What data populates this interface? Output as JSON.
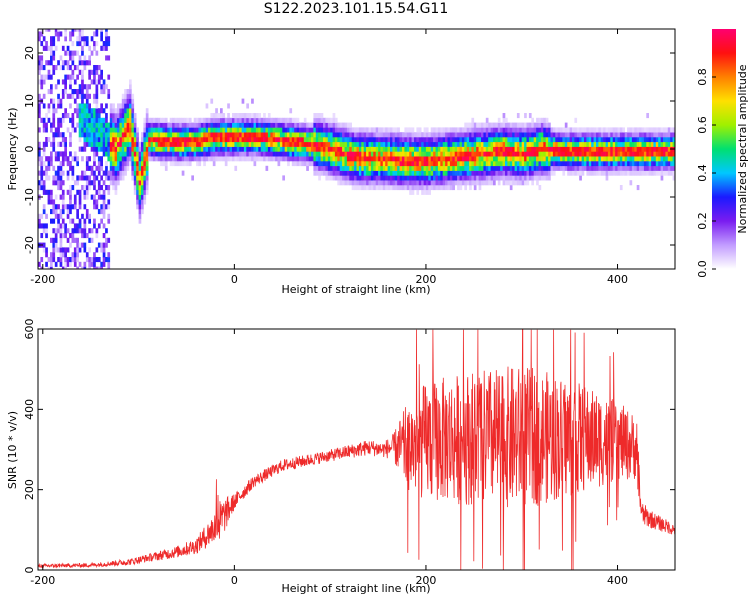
{
  "chart_data": [
    {
      "type": "heatmap",
      "title": "S122.2023.101.15.54.G11",
      "xlabel": "Height of straight line (km)",
      "ylabel": "Frequency (Hz)",
      "xlim": [
        -205,
        460
      ],
      "ylim": [
        -25,
        25
      ],
      "xticks": [
        -200,
        0,
        200,
        400
      ],
      "yticks": [
        -20,
        -10,
        0,
        10,
        20
      ],
      "colorbar": {
        "label": "Normalized spectral amplitude",
        "range": [
          0,
          1
        ],
        "ticks": [
          0.0,
          0.2,
          0.4,
          0.6,
          0.8
        ],
        "colors": [
          "#ffffff",
          "#c29cff",
          "#7a1cf0",
          "#1a1aff",
          "#00c8ff",
          "#00e070",
          "#a0f000",
          "#ffe000",
          "#ff8000",
          "#ff1010",
          "#ff0070"
        ]
      },
      "ridge": {
        "x": [
          -160,
          -140,
          -125,
          -110,
          -100,
          -90,
          -70,
          -40,
          -20,
          0,
          20,
          40,
          60,
          80,
          100,
          120,
          140,
          160,
          180,
          200,
          220,
          240,
          260,
          280,
          300,
          320,
          350,
          400,
          460
        ],
        "y": [
          6,
          3,
          0,
          5,
          -7,
          2,
          1.5,
          1.5,
          2.5,
          2.5,
          2.5,
          2,
          1.5,
          1,
          0,
          -1.5,
          -2,
          -2,
          -2.5,
          -2.5,
          -2,
          -1.5,
          -1,
          -0.5,
          -1,
          0,
          -0.5,
          -0.5,
          -0.5
        ]
      }
    },
    {
      "type": "line",
      "xlabel": "Height of straight line (km)",
      "ylabel": "SNR (10 * v/v)",
      "xlim": [
        -205,
        460
      ],
      "ylim": [
        0,
        600
      ],
      "xticks": [
        -200,
        0,
        200,
        400
      ],
      "yticks": [
        0,
        200,
        400,
        600
      ],
      "color": "#ee2a2a",
      "series": [
        {
          "x": [
            -205,
            -150,
            -110,
            -90,
            -60,
            -40,
            -25,
            -15,
            0,
            20,
            50,
            100,
            140,
            155,
            165,
            180,
            200,
            250,
            300,
            350,
            400,
            420,
            425,
            440,
            460
          ],
          "y": [
            10,
            12,
            20,
            30,
            45,
            60,
            95,
            120,
            170,
            220,
            260,
            285,
            305,
            300,
            305,
            305,
            320,
            330,
            330,
            330,
            320,
            305,
            140,
            120,
            100
          ],
          "noise": [
            5,
            5,
            8,
            10,
            15,
            20,
            35,
            55,
            20,
            15,
            15,
            15,
            20,
            20,
            30,
            110,
            150,
            170,
            180,
            150,
            100,
            80,
            30,
            20,
            15
          ]
        }
      ]
    }
  ]
}
